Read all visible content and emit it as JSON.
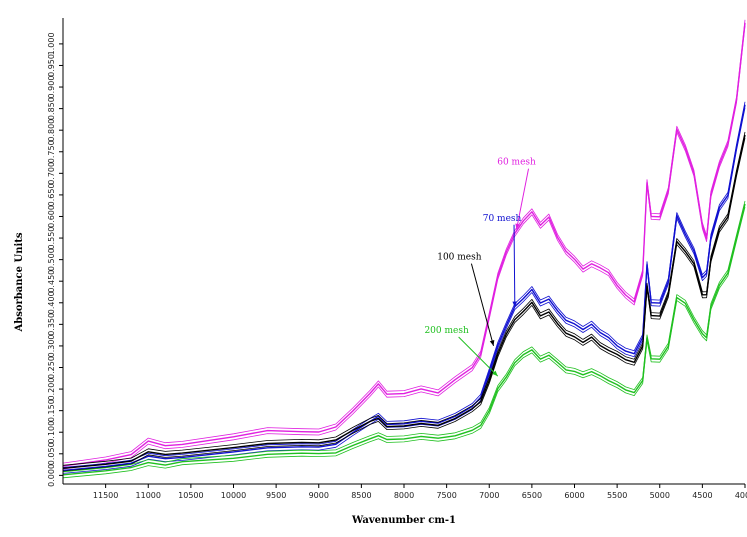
{
  "chart_data": {
    "type": "line",
    "title": "",
    "xlabel": "Wavenumber cm-1",
    "ylabel": "Absorbance Units",
    "xlim": [
      12000,
      4000
    ],
    "ylim": [
      -0.02,
      1.06
    ],
    "x_reversed": true,
    "x_ticks": [
      11500,
      11000,
      10500,
      10000,
      9500,
      9000,
      8500,
      8000,
      7500,
      7000,
      6500,
      6000,
      5500,
      5000,
      4500,
      4000
    ],
    "x_tick_labels": [
      "11500",
      "11000",
      "10500",
      "10000",
      "9500",
      "9000",
      "8500",
      "8000",
      "7500",
      "7000",
      "6500",
      "6000",
      "5500",
      "5000",
      "4500",
      "4000"
    ],
    "y_ticks": [
      0.0,
      0.05,
      0.1,
      0.15,
      0.2,
      0.25,
      0.3,
      0.35,
      0.4,
      0.45,
      0.5,
      0.55,
      0.6,
      0.65,
      0.7,
      0.75,
      0.8,
      0.85,
      0.9,
      0.95,
      1.0
    ],
    "y_tick_labels": [
      "0.000",
      "0.050",
      "0.100",
      "0.150",
      "0.200",
      "0.250",
      "0.300",
      "0.350",
      "0.400",
      "0.450",
      "0.500",
      "0.550",
      "0.600",
      "0.650",
      "0.700",
      "0.750",
      "0.800",
      "0.850",
      "0.900",
      "0.950",
      "1.000"
    ],
    "grid": false,
    "x": [
      12000,
      11500,
      11200,
      11000,
      10800,
      10600,
      10000,
      9600,
      9200,
      9000,
      8800,
      8600,
      8400,
      8300,
      8200,
      8000,
      7800,
      7600,
      7400,
      7200,
      7100,
      7000,
      6900,
      6800,
      6700,
      6600,
      6500,
      6400,
      6300,
      6200,
      6100,
      6000,
      5900,
      5800,
      5700,
      5600,
      5500,
      5400,
      5300,
      5200,
      5150,
      5100,
      5000,
      4900,
      4800,
      4700,
      4600,
      4500,
      4450,
      4400,
      4300,
      4200,
      4100,
      4000
    ],
    "series": [
      {
        "name": "60 mesh",
        "color": "#e020e0",
        "values": [
          0.02,
          0.035,
          0.05,
          0.08,
          0.07,
          0.07,
          0.09,
          0.105,
          0.1,
          0.1,
          0.11,
          0.15,
          0.19,
          0.21,
          0.19,
          0.19,
          0.2,
          0.19,
          0.22,
          0.25,
          0.28,
          0.37,
          0.46,
          0.52,
          0.56,
          0.59,
          0.61,
          0.58,
          0.6,
          0.55,
          0.52,
          0.5,
          0.48,
          0.49,
          0.48,
          0.47,
          0.44,
          0.42,
          0.4,
          0.47,
          0.68,
          0.6,
          0.6,
          0.66,
          0.8,
          0.76,
          0.7,
          0.58,
          0.55,
          0.65,
          0.72,
          0.77,
          0.87,
          1.05
        ]
      },
      {
        "name": "70 mesh",
        "color": "#1010d0",
        "values": [
          0.01,
          0.02,
          0.03,
          0.045,
          0.04,
          0.04,
          0.055,
          0.065,
          0.065,
          0.065,
          0.07,
          0.1,
          0.125,
          0.135,
          0.12,
          0.12,
          0.125,
          0.12,
          0.135,
          0.16,
          0.18,
          0.24,
          0.3,
          0.35,
          0.39,
          0.41,
          0.43,
          0.4,
          0.41,
          0.38,
          0.36,
          0.35,
          0.34,
          0.35,
          0.33,
          0.32,
          0.3,
          0.29,
          0.28,
          0.32,
          0.49,
          0.4,
          0.4,
          0.45,
          0.6,
          0.56,
          0.52,
          0.46,
          0.47,
          0.55,
          0.62,
          0.65,
          0.76,
          0.86
        ]
      },
      {
        "name": "100 mesh",
        "color": "#000000",
        "values": [
          0.015,
          0.025,
          0.035,
          0.055,
          0.05,
          0.05,
          0.065,
          0.075,
          0.075,
          0.075,
          0.08,
          0.105,
          0.125,
          0.13,
          0.115,
          0.115,
          0.12,
          0.115,
          0.13,
          0.155,
          0.17,
          0.22,
          0.28,
          0.33,
          0.36,
          0.38,
          0.4,
          0.37,
          0.38,
          0.35,
          0.33,
          0.32,
          0.31,
          0.32,
          0.3,
          0.29,
          0.28,
          0.27,
          0.26,
          0.3,
          0.44,
          0.37,
          0.37,
          0.42,
          0.54,
          0.52,
          0.49,
          0.42,
          0.42,
          0.5,
          0.57,
          0.6,
          0.7,
          0.79
        ]
      },
      {
        "name": "200 mesh",
        "color": "#20c020",
        "values": [
          0.0,
          0.01,
          0.02,
          0.03,
          0.025,
          0.03,
          0.04,
          0.05,
          0.05,
          0.05,
          0.05,
          0.07,
          0.085,
          0.09,
          0.085,
          0.085,
          0.09,
          0.085,
          0.09,
          0.105,
          0.115,
          0.15,
          0.2,
          0.23,
          0.26,
          0.28,
          0.29,
          0.27,
          0.28,
          0.26,
          0.245,
          0.24,
          0.235,
          0.24,
          0.23,
          0.22,
          0.21,
          0.2,
          0.19,
          0.22,
          0.32,
          0.27,
          0.27,
          0.3,
          0.41,
          0.4,
          0.36,
          0.33,
          0.32,
          0.39,
          0.44,
          0.47,
          0.55,
          0.63
        ]
      }
    ],
    "annotations": [
      {
        "text": "60 mesh",
        "series": "60 mesh",
        "x": 6680,
        "y": 0.72,
        "arrow_to_x": 6680,
        "arrow_to_y": 0.57
      },
      {
        "text": "70 mesh",
        "series": "70 mesh",
        "x": 6850,
        "y": 0.59,
        "arrow_to_x": 6700,
        "arrow_to_y": 0.39
      },
      {
        "text": "100 mesh",
        "series": "100 mesh",
        "x": 7350,
        "y": 0.5,
        "arrow_to_x": 6950,
        "arrow_to_y": 0.3
      },
      {
        "text": "200 mesh",
        "series": "200 mesh",
        "x": 7500,
        "y": 0.33,
        "arrow_to_x": 6900,
        "arrow_to_y": 0.23
      }
    ]
  }
}
